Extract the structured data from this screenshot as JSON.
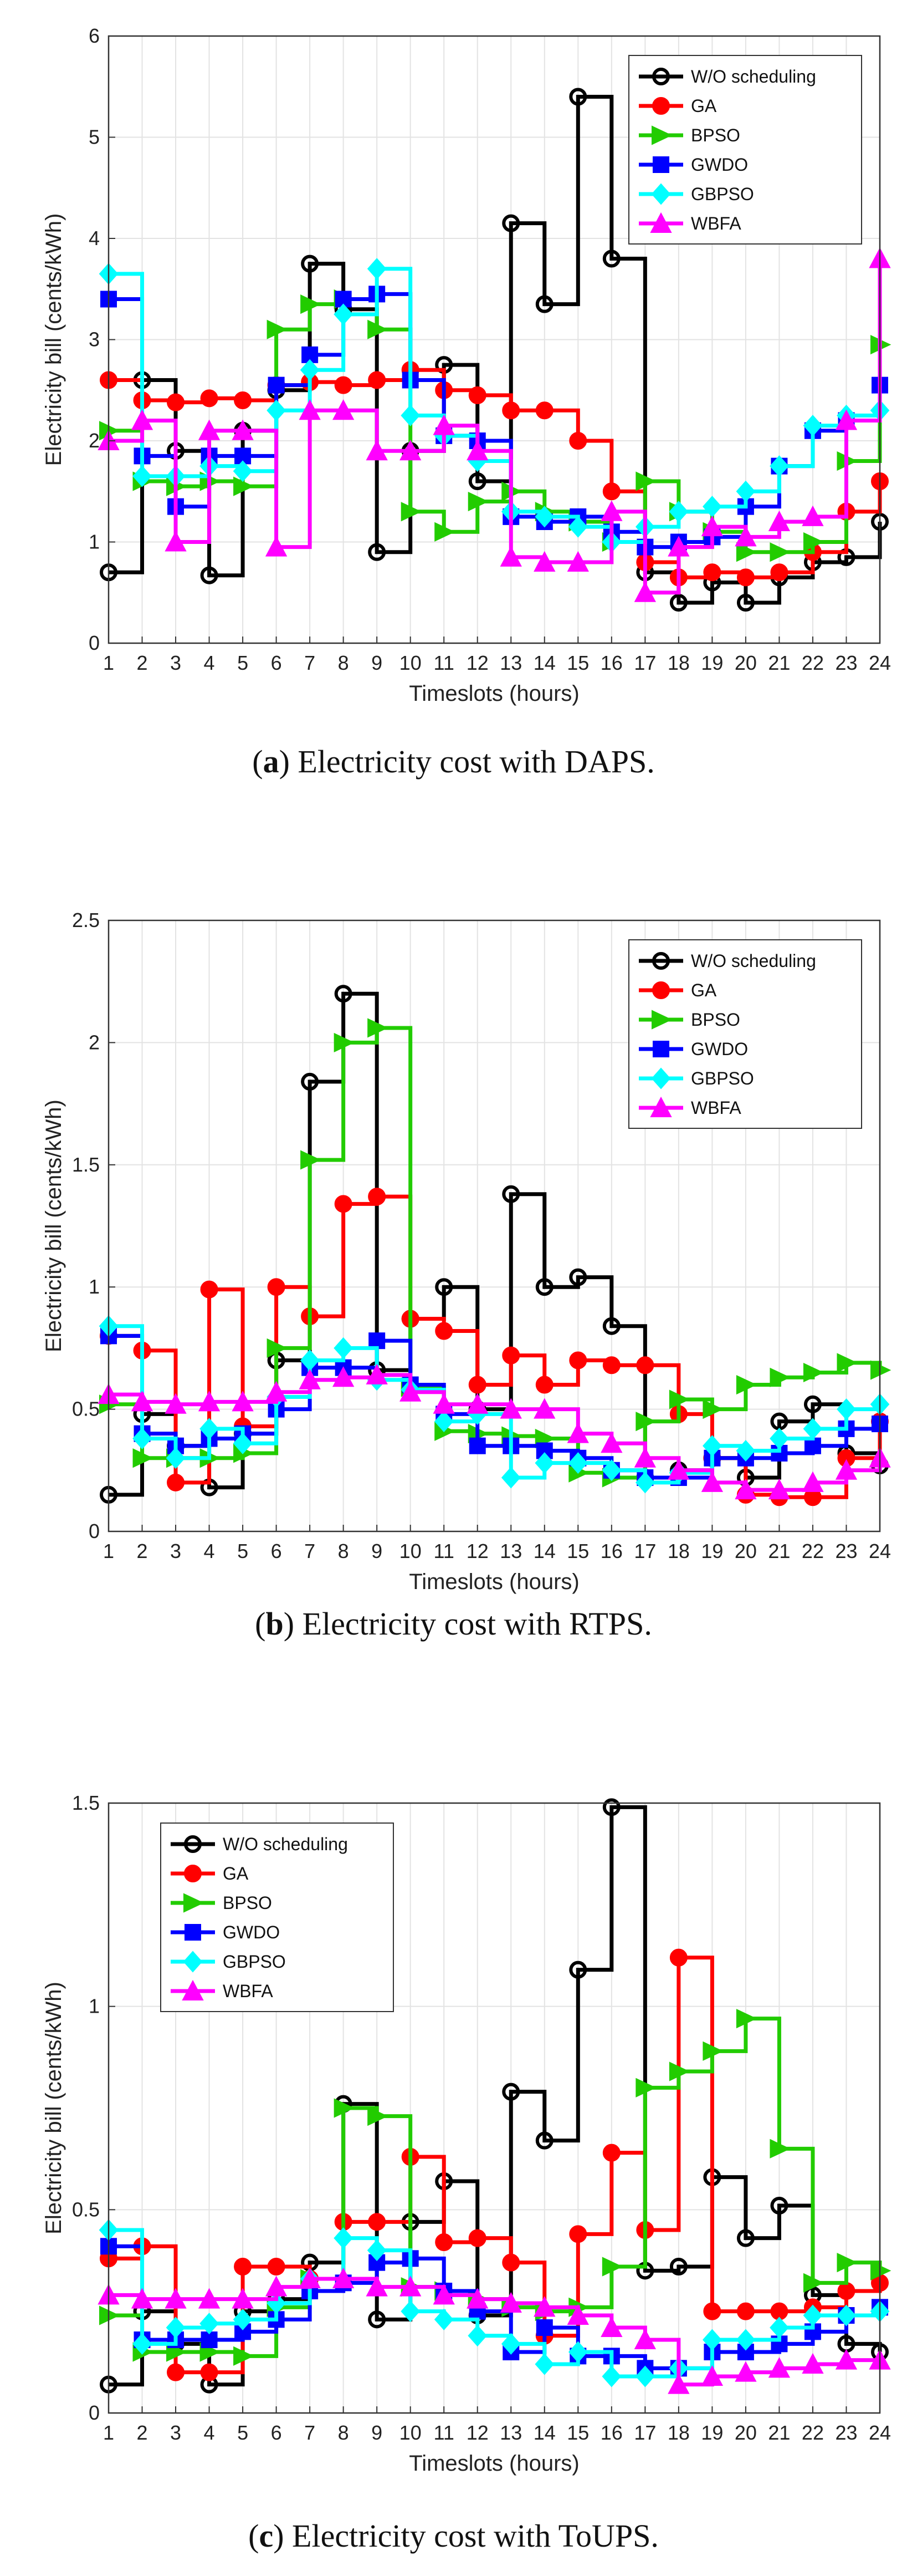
{
  "series_names": [
    "W/O scheduling",
    "GA",
    "BPSO",
    "GWDO",
    "GBPSO",
    "WBFA"
  ],
  "series_colors": [
    "#000000",
    "#ff0000",
    "#22cc00",
    "#0000ff",
    "#00ffff",
    "#ff00ff"
  ],
  "series_markers": [
    "circle",
    "circle",
    "triangle-right",
    "square",
    "diamond",
    "triangle-up"
  ],
  "chart_data": [
    {
      "type": "line",
      "step": true,
      "caption_letter": "a",
      "caption_text": " Electricity cost with DAPS.",
      "xlabel": "Timeslots (hours)",
      "ylabel": "Electricity bill (cents/kWh)",
      "xlim": [
        1,
        24
      ],
      "ylim": [
        0,
        6
      ],
      "yticks": [
        "0",
        "1",
        "2",
        "3",
        "4",
        "5",
        "6"
      ],
      "grid": true,
      "legend": "top-right",
      "x": [
        1,
        2,
        3,
        4,
        5,
        6,
        7,
        8,
        9,
        10,
        11,
        12,
        13,
        14,
        15,
        16,
        17,
        18,
        19,
        20,
        21,
        22,
        23,
        24
      ],
      "series": [
        {
          "name": "W/O scheduling",
          "values": [
            0.7,
            2.6,
            1.9,
            0.67,
            2.1,
            2.5,
            3.75,
            3.3,
            0.9,
            1.9,
            2.75,
            1.6,
            4.15,
            3.35,
            5.4,
            3.8,
            0.7,
            0.4,
            0.6,
            0.4,
            0.65,
            0.8,
            0.85,
            1.2
          ]
        },
        {
          "name": "GA",
          "values": [
            2.6,
            2.4,
            2.38,
            2.42,
            2.4,
            2.55,
            2.58,
            2.55,
            2.6,
            2.7,
            2.5,
            2.45,
            2.3,
            2.3,
            2.0,
            1.5,
            0.8,
            0.65,
            0.7,
            0.65,
            0.7,
            0.9,
            1.3,
            1.6
          ]
        },
        {
          "name": "BPSO",
          "values": [
            2.1,
            1.6,
            1.55,
            1.6,
            1.55,
            3.1,
            3.35,
            3.4,
            3.1,
            1.3,
            1.1,
            1.4,
            1.5,
            1.3,
            1.2,
            1.0,
            1.6,
            1.3,
            1.1,
            0.9,
            0.9,
            1.0,
            1.8,
            2.95
          ]
        },
        {
          "name": "GWDO",
          "values": [
            3.4,
            1.85,
            1.35,
            1.85,
            1.85,
            2.55,
            2.85,
            3.4,
            3.45,
            2.6,
            2.05,
            2.0,
            1.25,
            1.2,
            1.25,
            1.1,
            0.95,
            1.0,
            1.05,
            1.35,
            1.75,
            2.1,
            2.2,
            2.55
          ]
        },
        {
          "name": "GBPSO",
          "values": [
            3.65,
            1.65,
            1.65,
            1.75,
            1.7,
            2.3,
            2.7,
            3.25,
            3.7,
            2.25,
            2.05,
            1.8,
            1.3,
            1.25,
            1.15,
            1.0,
            1.15,
            1.3,
            1.35,
            1.5,
            1.75,
            2.15,
            2.25,
            2.3
          ]
        },
        {
          "name": "WBFA",
          "values": [
            2.0,
            2.2,
            1.0,
            2.1,
            2.1,
            0.95,
            2.3,
            2.3,
            1.9,
            1.9,
            2.15,
            1.9,
            0.85,
            0.8,
            0.8,
            1.3,
            0.5,
            0.95,
            1.15,
            1.05,
            1.2,
            1.25,
            2.2,
            3.8
          ]
        }
      ]
    },
    {
      "type": "line",
      "step": true,
      "caption_letter": "b",
      "caption_text": " Electricity cost with RTPS.",
      "xlabel": "Timeslots (hours)",
      "ylabel": "Electricity bill (cents/kWh)",
      "xlim": [
        1,
        24
      ],
      "ylim": [
        0,
        2.5
      ],
      "yticks": [
        "0",
        "0.5",
        "1",
        "1.5",
        "2",
        "2.5"
      ],
      "grid": true,
      "legend": "top-right",
      "x": [
        1,
        2,
        3,
        4,
        5,
        6,
        7,
        8,
        9,
        10,
        11,
        12,
        13,
        14,
        15,
        16,
        17,
        18,
        19,
        20,
        21,
        22,
        23,
        24
      ],
      "series": [
        {
          "name": "W/O scheduling",
          "values": [
            0.15,
            0.48,
            0.35,
            0.18,
            0.4,
            0.7,
            1.84,
            2.2,
            0.66,
            0.87,
            1.0,
            0.5,
            1.38,
            1.0,
            1.04,
            0.84,
            0.22,
            0.25,
            0.3,
            0.22,
            0.45,
            0.52,
            0.32,
            0.27
          ]
        },
        {
          "name": "GA",
          "values": [
            0.8,
            0.74,
            0.2,
            0.99,
            0.43,
            1.0,
            0.88,
            1.34,
            1.37,
            0.87,
            0.82,
            0.6,
            0.72,
            0.6,
            0.7,
            0.68,
            0.68,
            0.48,
            0.3,
            0.15,
            0.14,
            0.14,
            0.3,
            0.45
          ]
        },
        {
          "name": "BPSO",
          "values": [
            0.52,
            0.3,
            0.3,
            0.3,
            0.32,
            0.75,
            1.52,
            2.0,
            2.06,
            0.59,
            0.41,
            0.4,
            0.39,
            0.38,
            0.24,
            0.22,
            0.45,
            0.54,
            0.5,
            0.6,
            0.63,
            0.65,
            0.69,
            0.66
          ]
        },
        {
          "name": "GWDO",
          "values": [
            0.8,
            0.4,
            0.35,
            0.38,
            0.4,
            0.5,
            0.67,
            0.67,
            0.78,
            0.6,
            0.48,
            0.35,
            0.35,
            0.33,
            0.3,
            0.25,
            0.22,
            0.22,
            0.3,
            0.3,
            0.32,
            0.35,
            0.42,
            0.44
          ]
        },
        {
          "name": "GBPSO",
          "values": [
            0.84,
            0.38,
            0.3,
            0.42,
            0.36,
            0.55,
            0.7,
            0.75,
            0.62,
            0.58,
            0.45,
            0.48,
            0.22,
            0.28,
            0.28,
            0.25,
            0.2,
            0.24,
            0.35,
            0.33,
            0.38,
            0.42,
            0.5,
            0.52
          ]
        },
        {
          "name": "WBFA",
          "values": [
            0.56,
            0.53,
            0.52,
            0.53,
            0.53,
            0.57,
            0.62,
            0.63,
            0.64,
            0.57,
            0.52,
            0.52,
            0.5,
            0.5,
            0.4,
            0.36,
            0.3,
            0.25,
            0.2,
            0.17,
            0.17,
            0.2,
            0.25,
            0.3
          ]
        }
      ]
    },
    {
      "type": "line",
      "step": true,
      "caption_letter": "c",
      "caption_text": " Electricity cost with ToUPS.",
      "xlabel": "Timeslots (hours)",
      "ylabel": "Electricity bill (cents/kWh)",
      "xlim": [
        1,
        24
      ],
      "ylim": [
        0,
        1.5
      ],
      "yticks": [
        "0",
        "0.5",
        "1",
        "1.5"
      ],
      "grid": true,
      "legend": "top-left",
      "x": [
        1,
        2,
        3,
        4,
        5,
        6,
        7,
        8,
        9,
        10,
        11,
        12,
        13,
        14,
        15,
        16,
        17,
        18,
        19,
        20,
        21,
        22,
        23,
        24
      ],
      "series": [
        {
          "name": "W/O scheduling",
          "values": [
            0.07,
            0.25,
            0.17,
            0.07,
            0.25,
            0.28,
            0.37,
            0.76,
            0.23,
            0.47,
            0.57,
            0.24,
            0.79,
            0.67,
            1.09,
            1.49,
            0.35,
            0.36,
            0.58,
            0.43,
            0.51,
            0.29,
            0.17,
            0.15
          ]
        },
        {
          "name": "GA",
          "values": [
            0.38,
            0.41,
            0.1,
            0.1,
            0.36,
            0.36,
            0.33,
            0.47,
            0.47,
            0.63,
            0.42,
            0.43,
            0.37,
            0.19,
            0.44,
            0.64,
            0.45,
            1.12,
            0.25,
            0.25,
            0.25,
            0.26,
            0.3,
            0.32
          ]
        },
        {
          "name": "BPSO",
          "values": [
            0.24,
            0.15,
            0.15,
            0.15,
            0.14,
            0.26,
            0.33,
            0.75,
            0.73,
            0.31,
            0.3,
            0.28,
            0.26,
            0.25,
            0.26,
            0.36,
            0.8,
            0.84,
            0.89,
            0.97,
            0.65,
            0.32,
            0.37,
            0.35
          ]
        },
        {
          "name": "GWDO",
          "values": [
            0.41,
            0.18,
            0.18,
            0.18,
            0.2,
            0.23,
            0.3,
            0.32,
            0.37,
            0.38,
            0.3,
            0.25,
            0.15,
            0.21,
            0.14,
            0.14,
            0.11,
            0.11,
            0.15,
            0.15,
            0.17,
            0.2,
            0.24,
            0.26
          ]
        },
        {
          "name": "GBPSO",
          "values": [
            0.45,
            0.17,
            0.21,
            0.22,
            0.23,
            0.27,
            0.33,
            0.43,
            0.4,
            0.25,
            0.23,
            0.19,
            0.17,
            0.12,
            0.15,
            0.09,
            0.09,
            0.11,
            0.18,
            0.18,
            0.21,
            0.24,
            0.24,
            0.25
          ]
        },
        {
          "name": "WBFA",
          "values": [
            0.29,
            0.28,
            0.28,
            0.28,
            0.28,
            0.31,
            0.33,
            0.33,
            0.31,
            0.31,
            0.29,
            0.28,
            0.27,
            0.26,
            0.24,
            0.21,
            0.18,
            0.07,
            0.09,
            0.1,
            0.11,
            0.12,
            0.13,
            0.13
          ]
        }
      ]
    }
  ]
}
